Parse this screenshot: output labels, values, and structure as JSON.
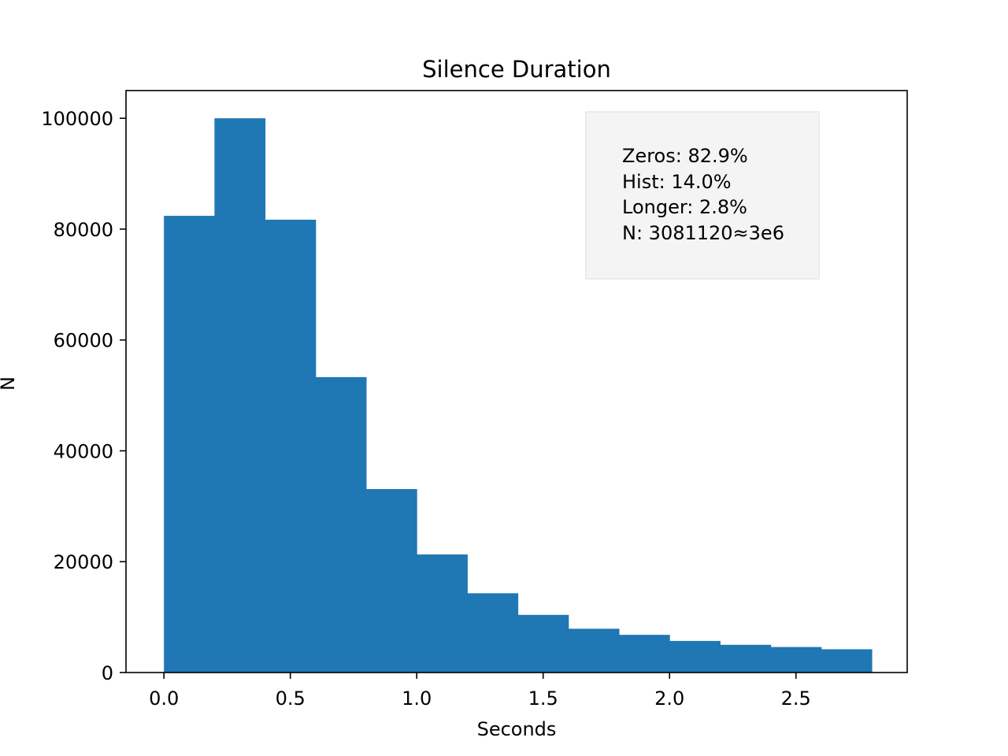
{
  "chart_data": {
    "type": "bar",
    "title": "Silence Duration",
    "xlabel": "Seconds",
    "ylabel": "N",
    "bin_edges": [
      0.0,
      0.2,
      0.4,
      0.6,
      0.8,
      1.0,
      1.2,
      1.4,
      1.6,
      1.8,
      2.0,
      2.2,
      2.4,
      2.6,
      2.8
    ],
    "values": [
      82400,
      100000,
      81700,
      53300,
      33100,
      21300,
      14300,
      10400,
      7900,
      6800,
      5700,
      5000,
      4600,
      4200
    ],
    "xlim": [
      -0.15,
      2.94
    ],
    "ylim": [
      0,
      105000
    ],
    "xticks": [
      0.0,
      0.5,
      1.0,
      1.5,
      2.0,
      2.5
    ],
    "xtick_labels": [
      "0.0",
      "0.5",
      "1.0",
      "1.5",
      "2.0",
      "2.5"
    ],
    "yticks": [
      0,
      20000,
      40000,
      60000,
      80000,
      100000
    ],
    "ytick_labels": [
      "0",
      "20000",
      "40000",
      "60000",
      "80000",
      "100000"
    ],
    "bar_color": "#1f77b4",
    "grid": false,
    "annotation": {
      "placement": "top-right",
      "lines": [
        "Zeros: 82.9%",
        "Hist: 14.0%",
        "Longer: 2.8%",
        "N: 3081120≈3e6"
      ],
      "background": "#f4f4f4"
    }
  }
}
